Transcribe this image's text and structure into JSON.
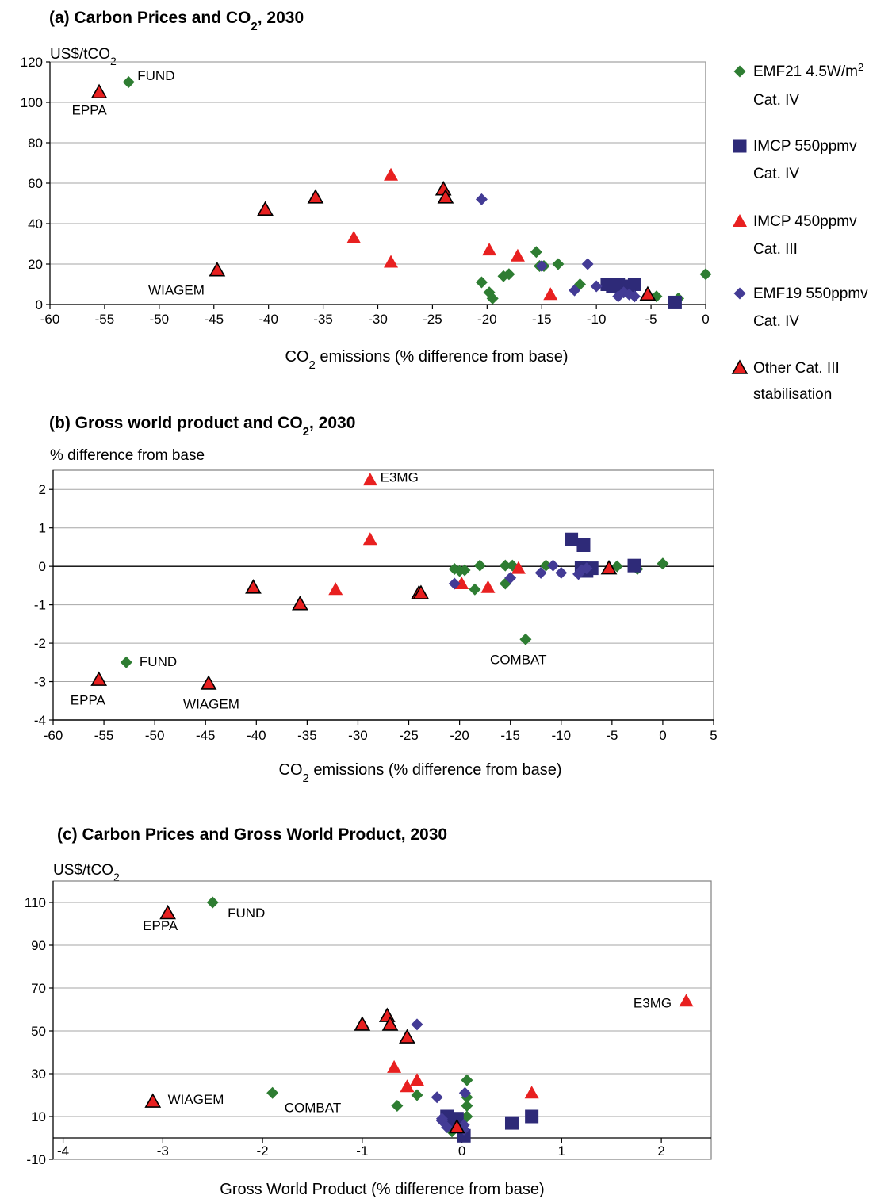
{
  "colors": {
    "emf21": "#2e7d32",
    "imcp550": "#2e2a78",
    "imcp450": "#e82020",
    "emf19": "#433b95",
    "other": "#e82020",
    "grid": "#a6a6a6"
  },
  "legend": [
    {
      "key": "emf21",
      "marker": "diamond",
      "line1": "EMF21 4.5W/m",
      "sup": "2",
      "line2": "Cat. IV"
    },
    {
      "key": "imcp550",
      "marker": "square",
      "line1": "IMCP 550ppmv",
      "sup": "",
      "line2": "Cat. IV"
    },
    {
      "key": "imcp450",
      "marker": "triangle",
      "line1": "IMCP 450ppmv",
      "sup": "",
      "line2": "Cat. III"
    },
    {
      "key": "emf19",
      "marker": "diamond",
      "line1": "EMF19 550ppmv",
      "sup": "",
      "line2": "Cat. IV"
    },
    {
      "key": "other",
      "marker": "triangle-outlined",
      "line1": "Other Cat. III",
      "sup": "",
      "line2": "stabilisation"
    }
  ],
  "chart_data": [
    {
      "id": "a",
      "type": "scatter",
      "title_pre": "(a) Carbon Prices and CO",
      "title_sub": "2",
      "title_post": ", 2030",
      "ylabel_pre": "US$/tCO",
      "ylabel_sub": "2",
      "xlabel_pre": "CO",
      "xlabel_sub": "2",
      "xlabel_post": " emissions (% difference from base)",
      "xlim": [
        -60,
        0
      ],
      "ylim": [
        0,
        120
      ],
      "xticks": [
        -60,
        -55,
        -50,
        -45,
        -40,
        -35,
        -30,
        -25,
        -20,
        -15,
        -10,
        -5,
        0
      ],
      "yticks": [
        0,
        20,
        40,
        60,
        80,
        100,
        120
      ],
      "grid": true,
      "annotations": [
        {
          "text": "FUND",
          "x": -52,
          "y": 111
        },
        {
          "text": "EPPA",
          "x": -58,
          "y": 94
        },
        {
          "text": "WIAGEM",
          "x": -51,
          "y": 5
        }
      ],
      "series": [
        {
          "key": "emf21",
          "points": [
            [
              -52.8,
              110
            ],
            [
              -20.5,
              11
            ],
            [
              -19.8,
              6
            ],
            [
              -19.5,
              3
            ],
            [
              -18.5,
              14
            ],
            [
              -18,
              15
            ],
            [
              -15.5,
              26
            ],
            [
              -15.2,
              19
            ],
            [
              -14.8,
              19
            ],
            [
              -13.5,
              20
            ],
            [
              -11.5,
              10
            ],
            [
              -4.5,
              4
            ],
            [
              -2.5,
              3
            ],
            [
              0,
              15
            ]
          ]
        },
        {
          "key": "imcp550",
          "points": [
            [
              -9,
              10
            ],
            [
              -8.5,
              9
            ],
            [
              -8,
              10
            ],
            [
              -7.5,
              8
            ],
            [
              -7,
              9
            ],
            [
              -6.5,
              10
            ],
            [
              -2.8,
              1
            ]
          ]
        },
        {
          "key": "imcp450",
          "points": [
            [
              -28.8,
              64
            ],
            [
              -32.2,
              33
            ],
            [
              -28.8,
              21
            ],
            [
              -19.8,
              27
            ],
            [
              -17.2,
              24
            ],
            [
              -14.2,
              5
            ]
          ]
        },
        {
          "key": "emf19",
          "points": [
            [
              -20.5,
              52
            ],
            [
              -15,
              19
            ],
            [
              -12,
              7
            ],
            [
              -10.8,
              20
            ],
            [
              -10,
              9
            ],
            [
              -8,
              4
            ],
            [
              -7.5,
              6
            ],
            [
              -7,
              5
            ],
            [
              -6.5,
              4
            ]
          ]
        },
        {
          "key": "other",
          "points": [
            [
              -55.5,
              105
            ],
            [
              -40.3,
              47
            ],
            [
              -35.7,
              53
            ],
            [
              -44.7,
              17
            ],
            [
              -24,
              57
            ],
            [
              -23.8,
              53
            ],
            [
              -5.3,
              5
            ]
          ]
        }
      ]
    },
    {
      "id": "b",
      "type": "scatter",
      "title_pre": "(b) Gross world product and CO",
      "title_sub": "2",
      "title_post": ", 2030",
      "ylabel_pre": "% difference from base",
      "ylabel_sub": "",
      "xlabel_pre": "CO",
      "xlabel_sub": "2",
      "xlabel_post": " emissions (% difference from base)",
      "xlim": [
        -60,
        5
      ],
      "ylim": [
        -4,
        2.5
      ],
      "xticks": [
        -60,
        -55,
        -50,
        -45,
        -40,
        -35,
        -30,
        -25,
        -20,
        -15,
        -10,
        -5,
        0,
        5
      ],
      "yticks": [
        -4,
        -3,
        -2,
        -1,
        0,
        1,
        2
      ],
      "grid": true,
      "annotations": [
        {
          "text": "E3MG",
          "x": -27.8,
          "y": 2.2
        },
        {
          "text": "FUND",
          "x": -51.5,
          "y": -2.6
        },
        {
          "text": "EPPA",
          "x": -58.3,
          "y": -3.6
        },
        {
          "text": "WIAGEM",
          "x": -47.2,
          "y": -3.7
        },
        {
          "text": "COMBAT",
          "x": -17,
          "y": -2.55
        }
      ],
      "series": [
        {
          "key": "emf21",
          "points": [
            [
              -52.8,
              -2.5
            ],
            [
              -20.5,
              -0.07
            ],
            [
              -20,
              -0.12
            ],
            [
              -19.5,
              -0.1
            ],
            [
              -18.5,
              -0.6
            ],
            [
              -18,
              0.02
            ],
            [
              -15.5,
              0.02
            ],
            [
              -15.5,
              -0.45
            ],
            [
              -14.8,
              0.02
            ],
            [
              -13.5,
              -1.9
            ],
            [
              -11.5,
              0.02
            ],
            [
              -4.5,
              0.0
            ],
            [
              -2.5,
              -0.07
            ],
            [
              0,
              0.07
            ]
          ]
        },
        {
          "key": "imcp550",
          "points": [
            [
              -9,
              0.7
            ],
            [
              -8,
              -0.03
            ],
            [
              -7.8,
              0.55
            ],
            [
              -7.5,
              -0.12
            ],
            [
              -7,
              -0.05
            ],
            [
              -2.8,
              0.02
            ]
          ]
        },
        {
          "key": "imcp450",
          "points": [
            [
              -28.8,
              2.25
            ],
            [
              -28.8,
              0.7
            ],
            [
              -32.2,
              -0.6
            ],
            [
              -19.8,
              -0.45
            ],
            [
              -17.2,
              -0.55
            ],
            [
              -14.2,
              -0.05
            ]
          ]
        },
        {
          "key": "emf19",
          "points": [
            [
              -20.5,
              -0.45
            ],
            [
              -15,
              -0.3
            ],
            [
              -12,
              -0.17
            ],
            [
              -10.8,
              0.02
            ],
            [
              -10,
              -0.17
            ],
            [
              -8.3,
              -0.2
            ],
            [
              -8,
              -0.1
            ],
            [
              -7.5,
              -0.05
            ]
          ]
        },
        {
          "key": "other",
          "points": [
            [
              -55.5,
              -2.95
            ],
            [
              -44.7,
              -3.05
            ],
            [
              -40.3,
              -0.55
            ],
            [
              -35.7,
              -0.98
            ],
            [
              -24,
              -0.7
            ],
            [
              -23.8,
              -0.7
            ],
            [
              -5.3,
              -0.05
            ]
          ]
        }
      ]
    },
    {
      "id": "c",
      "type": "scatter",
      "title_pre": "(c) Carbon Prices and Gross World Product, 2030",
      "title_sub": "",
      "title_post": "",
      "ylabel_pre": "US$/tCO",
      "ylabel_sub": "2",
      "xlabel_pre": "Gross World Product (% difference from base)",
      "xlabel_sub": "",
      "xlabel_post": "",
      "xlim": [
        -4.1,
        2.5
      ],
      "ylim": [
        -10,
        120
      ],
      "xticks": [
        -4,
        -3,
        -2,
        -1,
        0,
        1,
        2
      ],
      "yticks": [
        -10,
        10,
        30,
        50,
        70,
        90,
        110
      ],
      "grid": true,
      "annotations": [
        {
          "text": "FUND",
          "x": -2.35,
          "y": 103
        },
        {
          "text": "EPPA",
          "x": -3.2,
          "y": 97
        },
        {
          "text": "E3MG",
          "x": 1.72,
          "y": 61
        },
        {
          "text": "WIAGEM",
          "x": -2.95,
          "y": 16
        },
        {
          "text": "COMBAT",
          "x": -1.78,
          "y": 12
        }
      ],
      "series": [
        {
          "key": "emf21",
          "points": [
            [
              -2.5,
              110
            ],
            [
              -1.9,
              21
            ],
            [
              -0.65,
              15
            ],
            [
              -0.45,
              20
            ],
            [
              0.05,
              27
            ],
            [
              0.05,
              19
            ],
            [
              0.05,
              15
            ],
            [
              0.05,
              10
            ],
            [
              -0.1,
              3
            ],
            [
              -0.1,
              6
            ]
          ]
        },
        {
          "key": "imcp550",
          "points": [
            [
              -0.15,
              10
            ],
            [
              -0.1,
              8
            ],
            [
              -0.05,
              9
            ],
            [
              0.02,
              1
            ],
            [
              0.5,
              7
            ],
            [
              0.7,
              10
            ]
          ]
        },
        {
          "key": "imcp450",
          "points": [
            [
              2.25,
              64
            ],
            [
              -0.68,
              33
            ],
            [
              -0.55,
              24
            ],
            [
              -0.45,
              27
            ],
            [
              0.7,
              21
            ]
          ]
        },
        {
          "key": "emf19",
          "points": [
            [
              -0.45,
              53
            ],
            [
              -0.25,
              19
            ],
            [
              0.03,
              21
            ],
            [
              -0.2,
              8
            ],
            [
              -0.2,
              9
            ],
            [
              -0.15,
              5
            ],
            [
              0.02,
              4
            ],
            [
              0.02,
              6
            ]
          ]
        },
        {
          "key": "other",
          "points": [
            [
              -2.95,
              105
            ],
            [
              -0.75,
              57
            ],
            [
              -0.72,
              53
            ],
            [
              -1,
              53
            ],
            [
              -0.55,
              47
            ],
            [
              -3.1,
              17
            ],
            [
              -0.05,
              5
            ]
          ]
        }
      ]
    }
  ]
}
